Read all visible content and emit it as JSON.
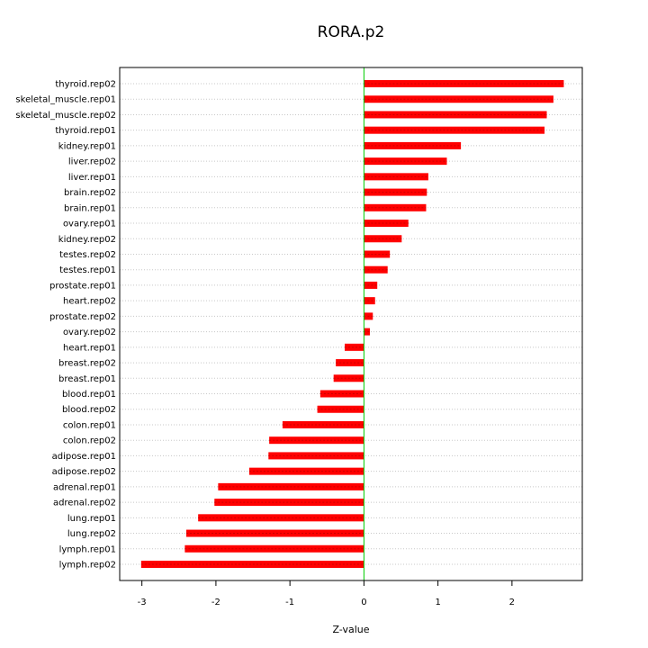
{
  "chart_data": {
    "type": "bar",
    "orientation": "horizontal",
    "title": "RORA.p2",
    "xlabel": "Z-value",
    "ylabel": "",
    "xlim": [
      -3.3,
      2.95
    ],
    "xticks": [
      "-3",
      "-2",
      "-1",
      "0",
      "1",
      "2"
    ],
    "grid": "horizontal dotted",
    "colors": {
      "bar": "#ff0000",
      "bar_center": "#cc0000",
      "zero_line": "#00cc00",
      "grid": "#c8c8c8"
    },
    "categories": [
      "thyroid.rep02",
      "skeletal_muscle.rep01",
      "skeletal_muscle.rep02",
      "thyroid.rep01",
      "kidney.rep01",
      "liver.rep02",
      "liver.rep01",
      "brain.rep02",
      "brain.rep01",
      "ovary.rep01",
      "kidney.rep02",
      "testes.rep02",
      "testes.rep01",
      "prostate.rep01",
      "heart.rep02",
      "prostate.rep02",
      "ovary.rep02",
      "heart.rep01",
      "breast.rep02",
      "breast.rep01",
      "blood.rep01",
      "blood.rep02",
      "colon.rep01",
      "colon.rep02",
      "adipose.rep01",
      "adipose.rep02",
      "adrenal.rep01",
      "adrenal.rep02",
      "lung.rep01",
      "lung.rep02",
      "lymph.rep01",
      "lymph.rep02"
    ],
    "values": [
      2.7,
      2.56,
      2.47,
      2.44,
      1.31,
      1.12,
      0.87,
      0.85,
      0.84,
      0.6,
      0.51,
      0.35,
      0.32,
      0.18,
      0.15,
      0.12,
      0.08,
      -0.26,
      -0.38,
      -0.41,
      -0.59,
      -0.63,
      -1.1,
      -1.28,
      -1.29,
      -1.55,
      -1.97,
      -2.02,
      -2.24,
      -2.4,
      -2.42,
      -3.01
    ]
  }
}
